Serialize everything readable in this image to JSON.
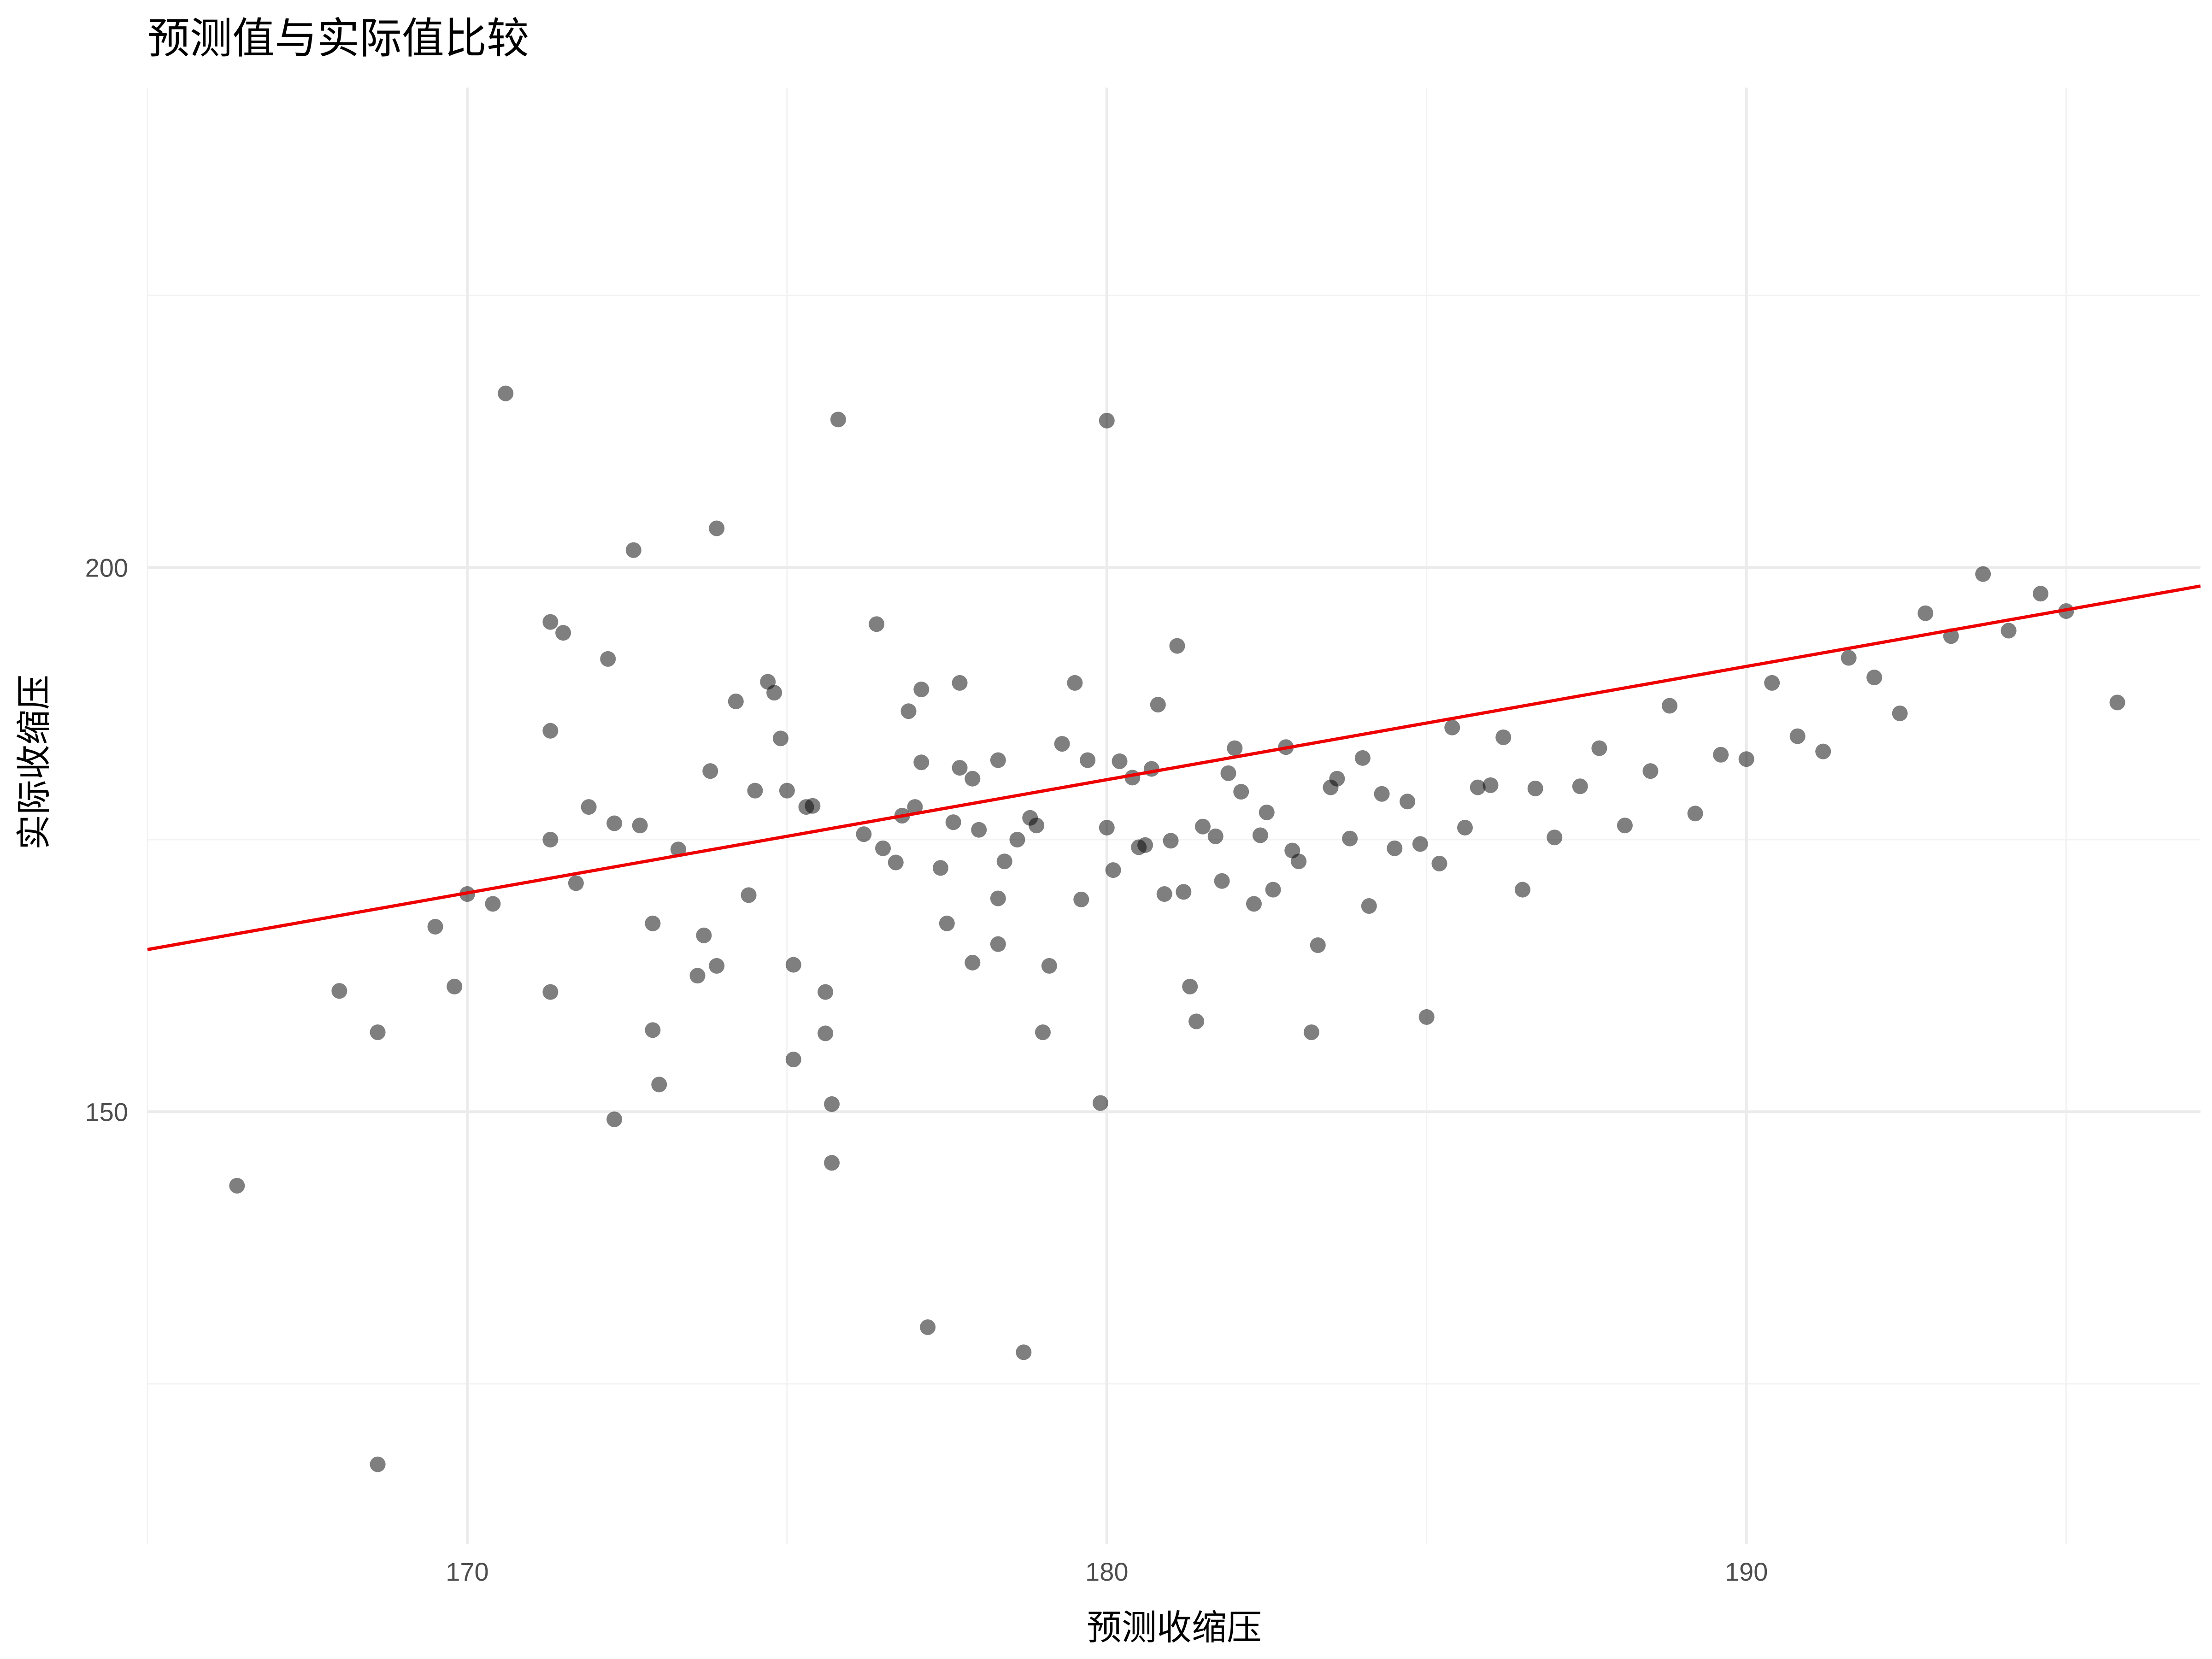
{
  "chart_data": {
    "type": "scatter",
    "title": "预测值与实际值比较",
    "xlabel": "预测收缩压",
    "ylabel": "实际收缩压",
    "xlim": [
      165,
      197.1
    ],
    "ylim": [
      110.3,
      244.1
    ],
    "x_ticks": [
      170,
      180,
      190
    ],
    "y_ticks": [
      150,
      200
    ],
    "grid": true,
    "legend": "none",
    "colors": {
      "points": "#000000",
      "point_opacity": 0.5,
      "fit_line": "#ee0000"
    },
    "fit_line": {
      "x": [
        165,
        197.1
      ],
      "y": [
        164.9,
        198.3
      ]
    },
    "points": [
      [
        166.4,
        143.2
      ],
      [
        168.0,
        161.1
      ],
      [
        168.6,
        157.3
      ],
      [
        168.6,
        117.6
      ],
      [
        169.5,
        167.0
      ],
      [
        169.8,
        161.5
      ],
      [
        170.0,
        170.0
      ],
      [
        170.4,
        169.1
      ],
      [
        170.6,
        216.0
      ],
      [
        171.3,
        195.0
      ],
      [
        171.3,
        185.0
      ],
      [
        171.3,
        175.0
      ],
      [
        171.3,
        161.0
      ],
      [
        171.5,
        194.0
      ],
      [
        171.7,
        171.0
      ],
      [
        171.9,
        178.0
      ],
      [
        172.2,
        191.6
      ],
      [
        172.3,
        176.5
      ],
      [
        172.3,
        149.3
      ],
      [
        172.6,
        201.6
      ],
      [
        172.7,
        176.3
      ],
      [
        172.9,
        157.5
      ],
      [
        172.9,
        167.3
      ],
      [
        173.0,
        152.5
      ],
      [
        173.3,
        174.1
      ],
      [
        173.6,
        162.5
      ],
      [
        173.7,
        166.2
      ],
      [
        173.8,
        181.3
      ],
      [
        173.9,
        203.6
      ],
      [
        173.9,
        163.4
      ],
      [
        174.2,
        187.7
      ],
      [
        174.4,
        169.9
      ],
      [
        174.5,
        179.5
      ],
      [
        174.7,
        189.5
      ],
      [
        174.8,
        188.5
      ],
      [
        174.9,
        184.3
      ],
      [
        175.0,
        179.5
      ],
      [
        175.1,
        163.5
      ],
      [
        175.1,
        154.8
      ],
      [
        175.3,
        178.0
      ],
      [
        175.4,
        178.1
      ],
      [
        175.6,
        161.0
      ],
      [
        175.6,
        157.2
      ],
      [
        175.7,
        150.7
      ],
      [
        175.7,
        145.3
      ],
      [
        175.8,
        213.6
      ],
      [
        176.2,
        175.5
      ],
      [
        176.4,
        194.8
      ],
      [
        176.5,
        174.2
      ],
      [
        176.7,
        172.9
      ],
      [
        176.8,
        177.2
      ],
      [
        176.9,
        186.8
      ],
      [
        177.0,
        178.0
      ],
      [
        177.1,
        182.1
      ],
      [
        177.1,
        188.8
      ],
      [
        177.2,
        130.2
      ],
      [
        177.4,
        172.4
      ],
      [
        177.5,
        167.3
      ],
      [
        177.6,
        176.6
      ],
      [
        177.7,
        189.4
      ],
      [
        177.7,
        181.6
      ],
      [
        177.9,
        180.6
      ],
      [
        177.9,
        163.7
      ],
      [
        178.0,
        175.9
      ],
      [
        178.3,
        165.4
      ],
      [
        178.3,
        182.3
      ],
      [
        178.3,
        169.6
      ],
      [
        178.4,
        173.0
      ],
      [
        178.6,
        175.0
      ],
      [
        178.7,
        127.9
      ],
      [
        178.8,
        177.0
      ],
      [
        178.9,
        176.3
      ],
      [
        179.0,
        157.3
      ],
      [
        179.1,
        163.4
      ],
      [
        179.3,
        183.8
      ],
      [
        179.5,
        189.4
      ],
      [
        179.6,
        169.5
      ],
      [
        179.7,
        182.3
      ],
      [
        179.9,
        150.8
      ],
      [
        180.0,
        213.5
      ],
      [
        180.0,
        176.1
      ],
      [
        180.1,
        172.2
      ],
      [
        180.2,
        182.2
      ],
      [
        180.4,
        180.7
      ],
      [
        180.5,
        174.3
      ],
      [
        180.6,
        174.5
      ],
      [
        180.7,
        181.5
      ],
      [
        180.8,
        187.4
      ],
      [
        180.9,
        170.0
      ],
      [
        181.0,
        174.9
      ],
      [
        181.1,
        192.8
      ],
      [
        181.2,
        170.2
      ],
      [
        181.3,
        161.5
      ],
      [
        181.4,
        158.3
      ],
      [
        181.5,
        176.2
      ],
      [
        181.7,
        175.3
      ],
      [
        181.8,
        171.2
      ],
      [
        181.9,
        181.1
      ],
      [
        182.0,
        183.4
      ],
      [
        182.1,
        179.4
      ],
      [
        182.3,
        169.1
      ],
      [
        182.4,
        175.4
      ],
      [
        182.5,
        177.5
      ],
      [
        182.6,
        170.4
      ],
      [
        182.8,
        183.5
      ],
      [
        182.9,
        174.0
      ],
      [
        183.0,
        173.0
      ],
      [
        183.2,
        157.3
      ],
      [
        183.3,
        165.3
      ],
      [
        183.5,
        179.8
      ],
      [
        183.6,
        180.6
      ],
      [
        183.8,
        175.1
      ],
      [
        184.0,
        182.5
      ],
      [
        184.1,
        168.9
      ],
      [
        184.3,
        179.2
      ],
      [
        184.5,
        174.2
      ],
      [
        184.7,
        178.5
      ],
      [
        184.9,
        174.6
      ],
      [
        185.0,
        158.7
      ],
      [
        185.2,
        172.8
      ],
      [
        185.4,
        185.3
      ],
      [
        185.6,
        176.1
      ],
      [
        185.8,
        179.8
      ],
      [
        186.0,
        180.0
      ],
      [
        186.2,
        184.4
      ],
      [
        186.5,
        170.4
      ],
      [
        186.7,
        179.7
      ],
      [
        187.0,
        175.2
      ],
      [
        187.4,
        179.9
      ],
      [
        187.7,
        183.4
      ],
      [
        188.1,
        176.3
      ],
      [
        188.5,
        181.3
      ],
      [
        188.8,
        187.3
      ],
      [
        189.2,
        177.4
      ],
      [
        189.6,
        182.8
      ],
      [
        190.0,
        182.4
      ],
      [
        190.4,
        189.4
      ],
      [
        190.8,
        184.5
      ],
      [
        191.2,
        183.1
      ],
      [
        191.6,
        191.7
      ],
      [
        192.0,
        189.9
      ],
      [
        192.4,
        186.6
      ],
      [
        192.8,
        195.8
      ],
      [
        193.2,
        193.7
      ],
      [
        193.7,
        199.4
      ],
      [
        194.1,
        194.2
      ],
      [
        194.6,
        197.6
      ],
      [
        195.0,
        196.0
      ],
      [
        195.8,
        187.6
      ]
    ]
  }
}
